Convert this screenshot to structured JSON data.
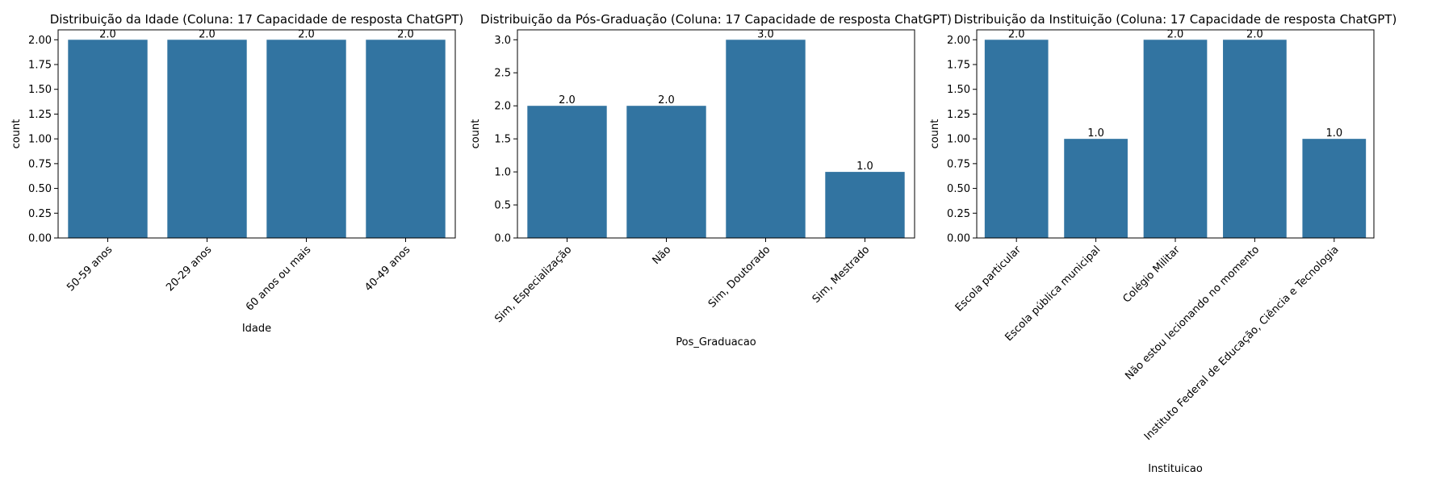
{
  "chart_data": [
    {
      "type": "bar",
      "title": "Distribuição da Idade (Coluna: 17 Capacidade de resposta ChatGPT)",
      "xlabel": "Idade",
      "ylabel": "count",
      "categories": [
        "50-59 anos",
        "20-29 anos",
        "60 anos ou mais",
        "40-49 anos"
      ],
      "values": [
        2.0,
        2.0,
        2.0,
        2.0
      ],
      "data_labels": [
        "2.0",
        "2.0",
        "2.0",
        "2.0"
      ],
      "ylim": [
        0,
        2.1
      ],
      "yticks": [
        0.0,
        0.25,
        0.5,
        0.75,
        1.0,
        1.25,
        1.5,
        1.75,
        2.0
      ],
      "ytick_labels": [
        "0.00",
        "0.25",
        "0.50",
        "0.75",
        "1.00",
        "1.25",
        "1.50",
        "1.75",
        "2.00"
      ],
      "grid": false,
      "bar_color": "#3274a1"
    },
    {
      "type": "bar",
      "title": "Distribuição da Pós-Graduação (Coluna: 17 Capacidade de resposta ChatGPT)",
      "xlabel": "Pos_Graduacao",
      "ylabel": "count",
      "categories": [
        "Sim, Especialização",
        "Não",
        "Sim, Doutorado",
        "Sim, Mestrado"
      ],
      "values": [
        2.0,
        2.0,
        3.0,
        1.0
      ],
      "data_labels": [
        "2.0",
        "2.0",
        "3.0",
        "1.0"
      ],
      "ylim": [
        0,
        3.15
      ],
      "yticks": [
        0.0,
        0.5,
        1.0,
        1.5,
        2.0,
        2.5,
        3.0
      ],
      "ytick_labels": [
        "0.0",
        "0.5",
        "1.0",
        "1.5",
        "2.0",
        "2.5",
        "3.0"
      ],
      "grid": false,
      "bar_color": "#3274a1"
    },
    {
      "type": "bar",
      "title": "Distribuição da Instituição (Coluna: 17 Capacidade de resposta ChatGPT)",
      "xlabel": "Instituicao",
      "ylabel": "count",
      "categories": [
        "Escola particular",
        "Escola pública municipal",
        "Colégio Militar",
        "Não estou lecionando no momento",
        "Instituto Federal de Educação, Ciência e Tecnologia"
      ],
      "values": [
        2.0,
        1.0,
        2.0,
        2.0,
        1.0
      ],
      "data_labels": [
        "2.0",
        "1.0",
        "2.0",
        "2.0",
        "1.0"
      ],
      "ylim": [
        0,
        2.1
      ],
      "yticks": [
        0.0,
        0.25,
        0.5,
        0.75,
        1.0,
        1.25,
        1.5,
        1.75,
        2.0
      ],
      "ytick_labels": [
        "0.00",
        "0.25",
        "0.50",
        "0.75",
        "1.00",
        "1.25",
        "1.50",
        "1.75",
        "2.00"
      ],
      "grid": false,
      "bar_color": "#3274a1"
    }
  ]
}
